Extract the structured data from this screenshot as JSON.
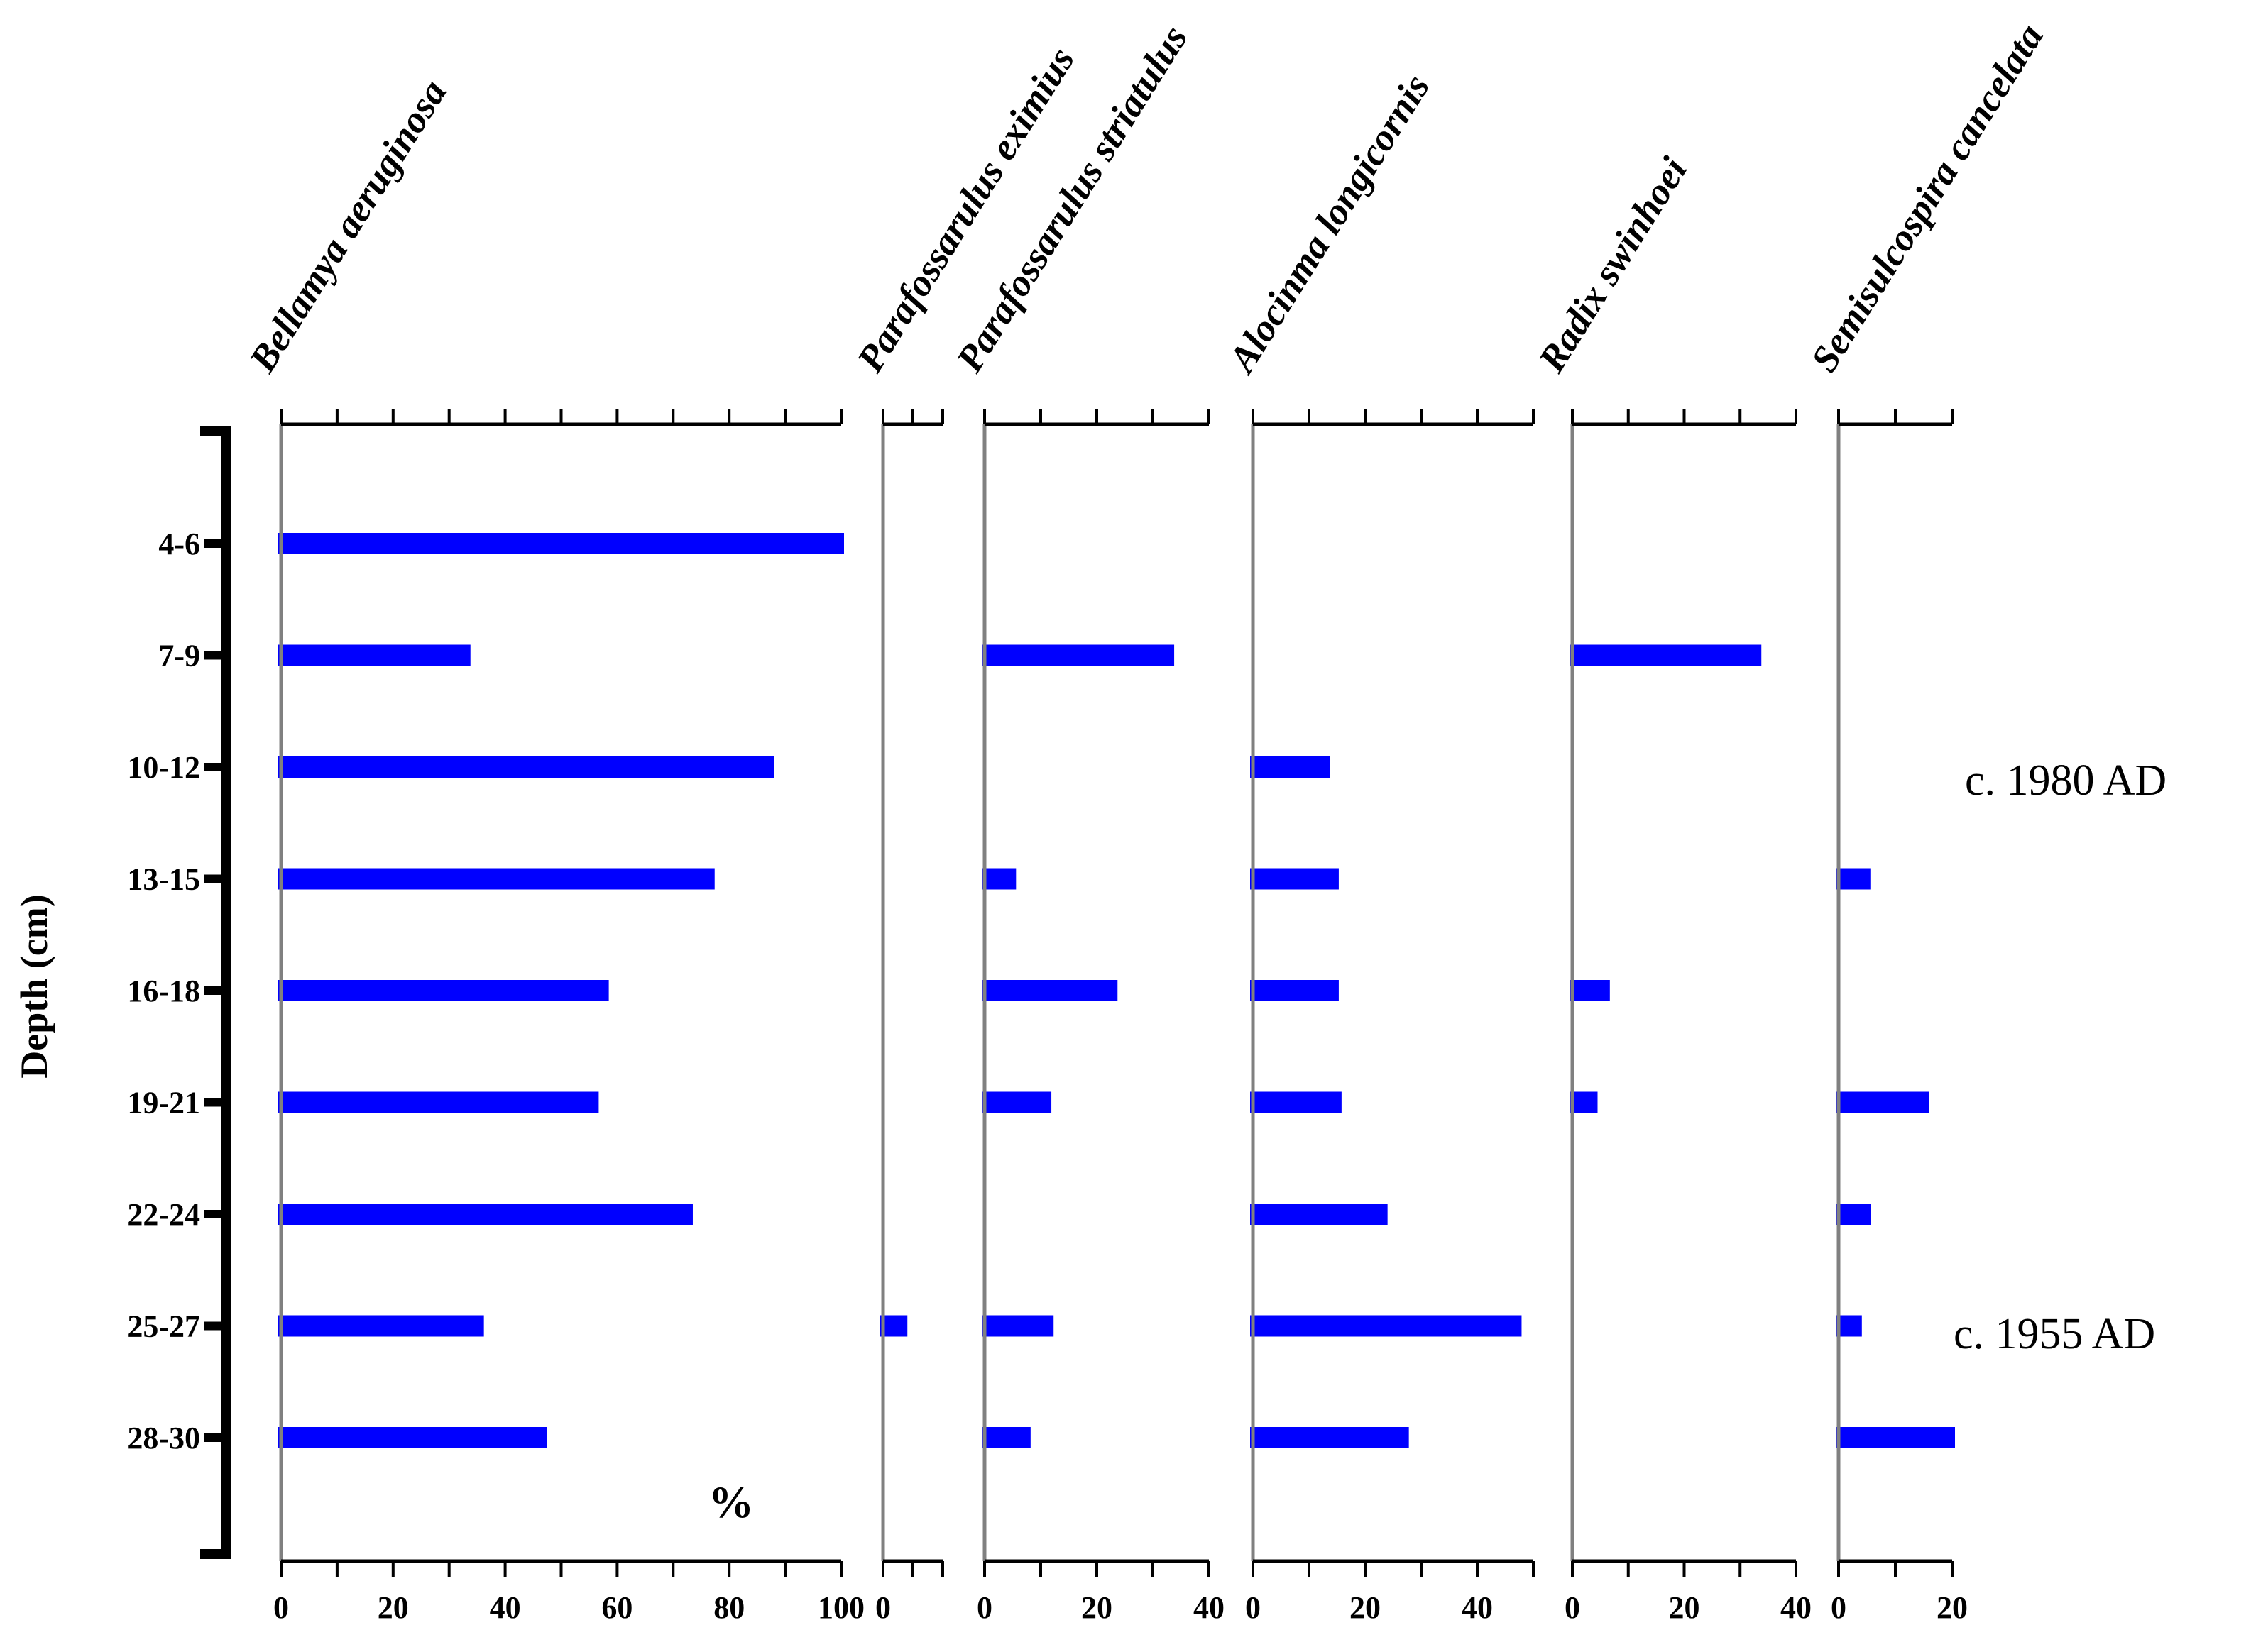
{
  "chart_data": {
    "type": "bar",
    "orientation": "horizontal",
    "ylabel": "Depth (cm)",
    "xlabel": "%",
    "depths": [
      "4-6",
      "7-9",
      "10-12",
      "13-15",
      "16-18",
      "19-21",
      "22-24",
      "25-27",
      "28-30"
    ],
    "panels": [
      {
        "name": "Bellamya aeruginosa",
        "xlim": [
          0,
          100
        ],
        "ticks": [
          0,
          20,
          40,
          60,
          80,
          100
        ],
        "values": [
          100,
          33.3,
          87.5,
          76.9,
          58,
          56.2,
          73,
          35.7,
          47
        ]
      },
      {
        "name": "Parafossarulus eximius",
        "xlim": [
          0,
          10
        ],
        "ticks": [
          0
        ],
        "values": [
          0,
          0,
          0,
          0,
          0,
          0,
          0,
          3.6,
          0
        ]
      },
      {
        "name": "Parafossarulus striatulus",
        "xlim": [
          0,
          40
        ],
        "ticks": [
          0,
          20,
          40
        ],
        "values": [
          0,
          33.3,
          0,
          5.1,
          23.2,
          11.4,
          0,
          11.8,
          7.7
        ]
      },
      {
        "name": "Alocinma longicornis",
        "xlim": [
          0,
          50
        ],
        "ticks": [
          0,
          20,
          40
        ],
        "values": [
          0,
          0,
          13.2,
          14.8,
          14.8,
          15.3,
          23.5,
          47.4,
          27.3
        ]
      },
      {
        "name": "Radix swinhoei",
        "xlim": [
          0,
          40
        ],
        "ticks": [
          0,
          20,
          40
        ],
        "values": [
          0,
          33.3,
          0,
          0,
          6.2,
          4.0,
          0,
          0,
          0
        ]
      },
      {
        "name": "Semisulcospira cancelata",
        "xlim": [
          0,
          20
        ],
        "ticks": [
          0,
          20
        ],
        "values": [
          0,
          0,
          0,
          5.1,
          0,
          15.4,
          5.2,
          3.6,
          20
        ]
      }
    ],
    "annotations": [
      "c. 1980 AD",
      "c. 1955 AD"
    ],
    "unit_label": "%",
    "bar_color": "#0000ff"
  }
}
